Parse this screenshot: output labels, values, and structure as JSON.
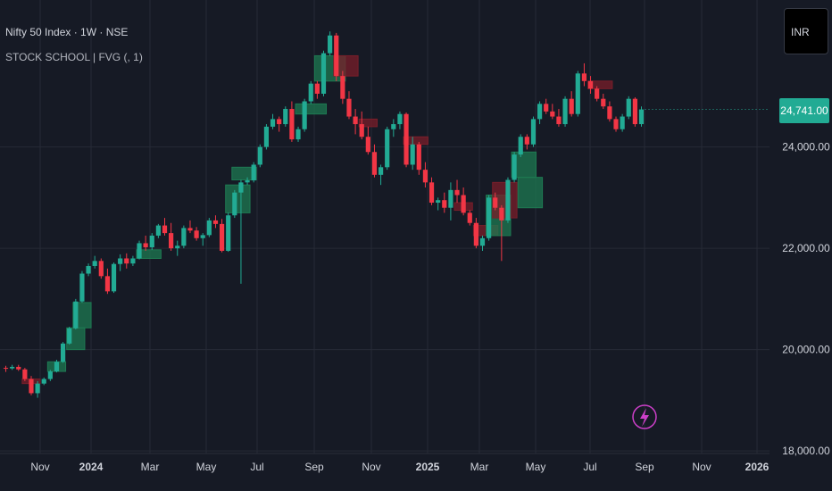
{
  "header": {
    "symbol_title": "Nifty 50 Index · 1W · NSE",
    "indicator_label": "STOCK SCHOOL | FVG (, 1)"
  },
  "currency_button": {
    "label": "INR"
  },
  "last_price": {
    "label": "24,741.00"
  },
  "alert_icon": {
    "name": "lightning-icon"
  },
  "colors": {
    "background": "#161a25",
    "grid": "#262a36",
    "up": "#22ab94",
    "down": "#f23645",
    "fvg_up": "#1e7a52",
    "fvg_down": "#7a1e2a",
    "text": "#d1d4dc",
    "accent_alert": "#cc3fc8"
  },
  "chart_data": {
    "type": "candlestick",
    "timeframe": "1W",
    "y_axis": {
      "ticks": [
        "24,000.00",
        "22,000.00",
        "20,000.00",
        "18,000.00"
      ],
      "tick_values": [
        24000,
        22000,
        20000,
        18000
      ],
      "ylim": [
        17950,
        26900
      ],
      "position": "right"
    },
    "x_axis": {
      "ticks": [
        "Nov",
        "2024",
        "Mar",
        "May",
        "Jul",
        "Sep",
        "Nov",
        "2025",
        "Mar",
        "May",
        "Jul",
        "Sep",
        "Nov",
        "2026"
      ],
      "bold_ticks": [
        "2024",
        "2025",
        "2026"
      ]
    },
    "grid": true,
    "ohlc": [
      [
        19640,
        19680,
        19560,
        19630
      ],
      [
        19630,
        19700,
        19600,
        19660
      ],
      [
        19660,
        19700,
        19580,
        19610
      ],
      [
        19610,
        19640,
        19380,
        19420
      ],
      [
        19420,
        19480,
        19100,
        19140
      ],
      [
        19140,
        19380,
        19050,
        19330
      ],
      [
        19330,
        19450,
        19300,
        19420
      ],
      [
        19420,
        19600,
        19380,
        19570
      ],
      [
        19570,
        19800,
        19550,
        19760
      ],
      [
        19760,
        20150,
        19740,
        20120
      ],
      [
        20120,
        20450,
        20100,
        20420
      ],
      [
        20420,
        21000,
        20400,
        20950
      ],
      [
        20950,
        21550,
        20930,
        21500
      ],
      [
        21500,
        21700,
        21450,
        21650
      ],
      [
        21650,
        21850,
        21600,
        21750
      ],
      [
        21750,
        21800,
        21400,
        21450
      ],
      [
        21450,
        21600,
        21100,
        21150
      ],
      [
        21150,
        21720,
        21120,
        21690
      ],
      [
        21690,
        21880,
        21550,
        21800
      ],
      [
        21800,
        21900,
        21600,
        21700
      ],
      [
        21700,
        21850,
        21650,
        21800
      ],
      [
        21800,
        22150,
        21780,
        22100
      ],
      [
        22100,
        22250,
        21950,
        22020
      ],
      [
        22020,
        22300,
        21970,
        22250
      ],
      [
        22250,
        22480,
        22200,
        22450
      ],
      [
        22450,
        22600,
        22250,
        22300
      ],
      [
        22300,
        22500,
        21950,
        22000
      ],
      [
        22000,
        22150,
        21850,
        22050
      ],
      [
        22050,
        22450,
        22000,
        22400
      ],
      [
        22400,
        22550,
        22300,
        22350
      ],
      [
        22350,
        22420,
        22150,
        22200
      ],
      [
        22200,
        22300,
        22050,
        22260
      ],
      [
        22260,
        22600,
        22220,
        22550
      ],
      [
        22550,
        22650,
        22400,
        22480
      ],
      [
        22480,
        22580,
        21920,
        21950
      ],
      [
        21950,
        22700,
        21930,
        22650
      ],
      [
        22650,
        23150,
        22600,
        23100
      ],
      [
        23100,
        23350,
        21300,
        23300
      ],
      [
        23300,
        23400,
        23250,
        23340
      ],
      [
        23340,
        23700,
        23300,
        23650
      ],
      [
        23650,
        24050,
        23600,
        24000
      ],
      [
        24000,
        24450,
        23950,
        24400
      ],
      [
        24400,
        24650,
        24350,
        24550
      ],
      [
        24550,
        24600,
        24300,
        24450
      ],
      [
        24450,
        24800,
        24400,
        24750
      ],
      [
        24750,
        24900,
        24100,
        24150
      ],
      [
        24150,
        24400,
        24100,
        24350
      ],
      [
        24350,
        24950,
        24300,
        24900
      ],
      [
        24900,
        25300,
        24850,
        25250
      ],
      [
        25250,
        25300,
        24950,
        25050
      ],
      [
        25050,
        25900,
        25000,
        25850
      ],
      [
        25850,
        26280,
        25800,
        26200
      ],
      [
        26200,
        26250,
        25300,
        25400
      ],
      [
        25400,
        25500,
        24850,
        24950
      ],
      [
        24950,
        25100,
        24550,
        24600
      ],
      [
        24600,
        24750,
        24250,
        24450
      ],
      [
        24450,
        24700,
        24150,
        24200
      ],
      [
        24200,
        24400,
        23850,
        23900
      ],
      [
        23900,
        24050,
        23400,
        23450
      ],
      [
        23450,
        23650,
        23250,
        23600
      ],
      [
        23600,
        24400,
        23550,
        24350
      ],
      [
        24350,
        24550,
        24200,
        24450
      ],
      [
        24450,
        24700,
        24350,
        24650
      ],
      [
        24650,
        24680,
        23600,
        23650
      ],
      [
        23650,
        24200,
        23550,
        24050
      ],
      [
        24050,
        24100,
        23450,
        23550
      ],
      [
        23550,
        23700,
        23200,
        23300
      ],
      [
        23300,
        23400,
        22850,
        22900
      ],
      [
        22900,
        23000,
        22750,
        22950
      ],
      [
        22950,
        23100,
        22700,
        22800
      ],
      [
        22800,
        23300,
        22550,
        23150
      ],
      [
        23150,
        23350,
        22900,
        23050
      ],
      [
        23050,
        23200,
        22650,
        22700
      ],
      [
        22700,
        22750,
        22450,
        22500
      ],
      [
        22500,
        22600,
        22000,
        22050
      ],
      [
        22050,
        22250,
        21950,
        22200
      ],
      [
        22200,
        23050,
        22150,
        23000
      ],
      [
        23000,
        23100,
        22750,
        22800
      ],
      [
        22800,
        22850,
        21750,
        22550
      ],
      [
        22550,
        23400,
        22500,
        23350
      ],
      [
        23350,
        23900,
        23300,
        23850
      ],
      [
        23850,
        24250,
        23800,
        24200
      ],
      [
        24200,
        24250,
        23950,
        24050
      ],
      [
        24050,
        24600,
        24000,
        24550
      ],
      [
        24550,
        24900,
        24450,
        24850
      ],
      [
        24850,
        24950,
        24650,
        24700
      ],
      [
        24700,
        24850,
        24550,
        24600
      ],
      [
        24600,
        24750,
        24400,
        24450
      ],
      [
        24450,
        25000,
        24400,
        24950
      ],
      [
        24950,
        25100,
        24600,
        24650
      ],
      [
        24650,
        25500,
        24600,
        25450
      ],
      [
        25450,
        25650,
        25200,
        25300
      ],
      [
        25300,
        25400,
        25050,
        25150
      ],
      [
        25150,
        25200,
        24900,
        24950
      ],
      [
        24950,
        25050,
        24750,
        24800
      ],
      [
        24800,
        24900,
        24500,
        24550
      ],
      [
        24550,
        24600,
        24300,
        24350
      ],
      [
        24350,
        24650,
        24300,
        24600
      ],
      [
        24600,
        25000,
        24550,
        24950
      ],
      [
        24950,
        24980,
        24400,
        24450
      ],
      [
        24450,
        24800,
        24400,
        24741
      ]
    ],
    "fvg_zones": [
      {
        "type": "bearish",
        "from": 3,
        "to": 5,
        "low": 19330,
        "high": 19420
      },
      {
        "type": "bullish",
        "from": 7,
        "to": 9,
        "low": 19570,
        "high": 19760
      },
      {
        "type": "bullish",
        "from": 10,
        "to": 12,
        "low": 20000,
        "high": 20430
      },
      {
        "type": "bullish",
        "from": 11,
        "to": 13,
        "low": 20430,
        "high": 20930
      },
      {
        "type": "bullish",
        "from": 21,
        "to": 24,
        "low": 21800,
        "high": 21970
      },
      {
        "type": "bullish",
        "from": 35,
        "to": 38,
        "low": 22700,
        "high": 23250
      },
      {
        "type": "bullish",
        "from": 36,
        "to": 39,
        "low": 23350,
        "high": 23600
      },
      {
        "type": "bullish",
        "from": 46,
        "to": 50,
        "low": 24650,
        "high": 24850
      },
      {
        "type": "bullish",
        "from": 49,
        "to": 53,
        "low": 25300,
        "high": 25800
      },
      {
        "type": "bearish",
        "from": 52,
        "to": 55,
        "low": 25400,
        "high": 25800
      },
      {
        "type": "bearish",
        "from": 56,
        "to": 58,
        "low": 24400,
        "high": 24550
      },
      {
        "type": "bearish",
        "from": 63,
        "to": 66,
        "low": 24050,
        "high": 24200
      },
      {
        "type": "bearish",
        "from": 71,
        "to": 73,
        "low": 22750,
        "high": 22900
      },
      {
        "type": "bearish",
        "from": 74,
        "to": 77,
        "low": 22250,
        "high": 22450
      },
      {
        "type": "bullish",
        "from": 76,
        "to": 79,
        "low": 22250,
        "high": 23050
      },
      {
        "type": "bearish",
        "from": 77,
        "to": 80,
        "low": 22600,
        "high": 23300
      },
      {
        "type": "bullish",
        "from": 80,
        "to": 83,
        "low": 23400,
        "high": 23900
      },
      {
        "type": "bullish",
        "from": 81,
        "to": 84,
        "low": 22800,
        "high": 23400
      },
      {
        "type": "bearish",
        "from": 92,
        "to": 95,
        "low": 25150,
        "high": 25300
      }
    ]
  }
}
